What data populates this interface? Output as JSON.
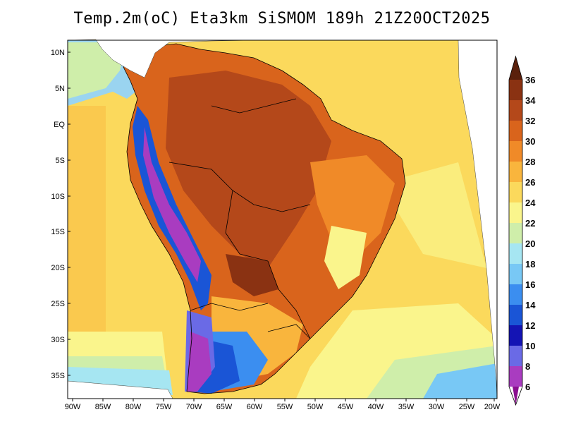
{
  "title": "Temp.2m(oC) Eta3km SiSMOM 189h 21Z20OCT2025",
  "lat_labels": [
    "10N",
    "5N",
    "EQ",
    "5S",
    "10S",
    "15S",
    "20S",
    "25S",
    "30S",
    "35S"
  ],
  "lon_labels": [
    "90W",
    "85W",
    "80W",
    "75W",
    "70W",
    "65W",
    "60W",
    "55W",
    "50W",
    "45W",
    "40W",
    "35W",
    "30W",
    "25W",
    "20W"
  ],
  "colorbar": {
    "labels": [
      "6",
      "8",
      "10",
      "12",
      "14",
      "16",
      "18",
      "20",
      "22",
      "24",
      "26",
      "28",
      "30",
      "32",
      "34",
      "36"
    ],
    "colors": [
      "#8a0f8f",
      "#a93cc0",
      "#6a6ae6",
      "#1414b4",
      "#1a55d6",
      "#3b8ef0",
      "#78c8f5",
      "#a6e6f2",
      "#cfeeaa",
      "#faf58c",
      "#fbd95c",
      "#f9b53d",
      "#f08a28",
      "#d9641c",
      "#b4481a",
      "#8a3212",
      "#5a200c"
    ]
  }
}
